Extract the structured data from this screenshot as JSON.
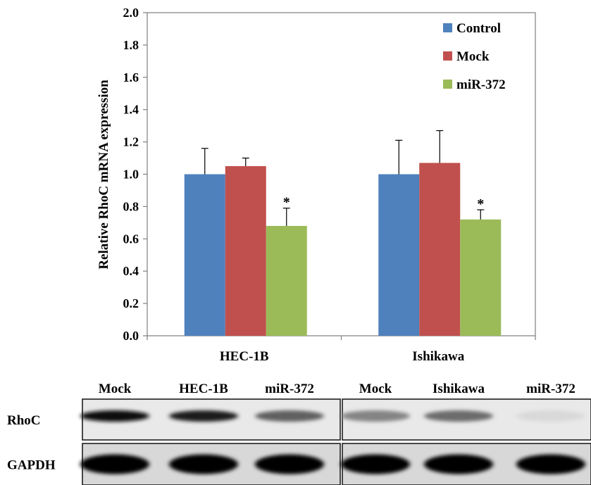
{
  "chart_data": {
    "type": "bar",
    "title": "",
    "xlabel": "",
    "ylabel": "Relative RhoC mRNA expression",
    "ylim": [
      0,
      2.0
    ],
    "yticks": [
      "0.0",
      "0.2",
      "0.4",
      "0.6",
      "0.8",
      "1.0",
      "1.2",
      "1.4",
      "1.6",
      "1.8",
      "2.0"
    ],
    "categories": [
      "HEC-1B",
      "Ishikawa"
    ],
    "grid": false,
    "legend_position": "top-right",
    "series": [
      {
        "name": "Control",
        "color": "#4f81bd",
        "values": [
          1.0,
          1.0
        ],
        "errors": [
          0.16,
          0.21
        ]
      },
      {
        "name": "Mock",
        "color": "#c0504d",
        "values": [
          1.05,
          1.07
        ],
        "errors": [
          0.05,
          0.2
        ]
      },
      {
        "name": "miR-372",
        "color": "#9bbb59",
        "values": [
          0.68,
          0.72
        ],
        "errors": [
          0.11,
          0.06
        ]
      }
    ],
    "annotations": [
      {
        "text": "*",
        "category": "HEC-1B",
        "series": "miR-372"
      },
      {
        "text": "*",
        "category": "Ishikawa",
        "series": "miR-372"
      }
    ]
  },
  "blot": {
    "panels": [
      {
        "headers": [
          "Mock",
          "HEC-1B",
          "miR-372"
        ]
      },
      {
        "headers": [
          "Mock",
          "Ishikawa",
          "miR-372"
        ]
      }
    ],
    "rows": [
      {
        "label": "RhoC",
        "intensities": [
          [
            0.95,
            0.9,
            0.6
          ],
          [
            0.45,
            0.55,
            0.08
          ]
        ]
      },
      {
        "label": "GAPDH",
        "intensities": [
          [
            1.0,
            1.0,
            1.0
          ],
          [
            1.0,
            1.0,
            1.0
          ]
        ]
      }
    ]
  }
}
